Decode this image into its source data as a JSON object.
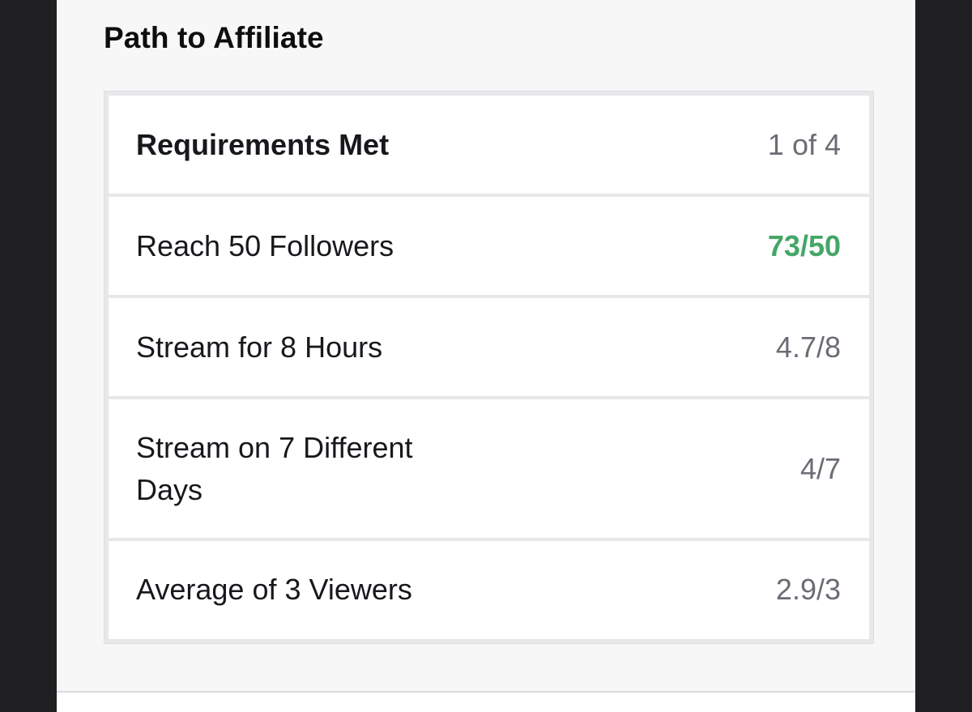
{
  "section": {
    "title": "Path to Affiliate"
  },
  "summary": {
    "label": "Requirements Met",
    "value": "1 of 4"
  },
  "requirements": [
    {
      "label": "Reach 50 Followers",
      "value": "73/50",
      "met": true
    },
    {
      "label": "Stream for 8 Hours",
      "value": "4.7/8",
      "met": false
    },
    {
      "label": "Stream on 7 Different Days",
      "value": "4/7",
      "met": false
    },
    {
      "label": "Average of 3 Viewers",
      "value": "2.9/3",
      "met": false
    }
  ],
  "colors": {
    "met": "#45a667",
    "unmet": "#6e6b74",
    "text": "#19171c"
  }
}
